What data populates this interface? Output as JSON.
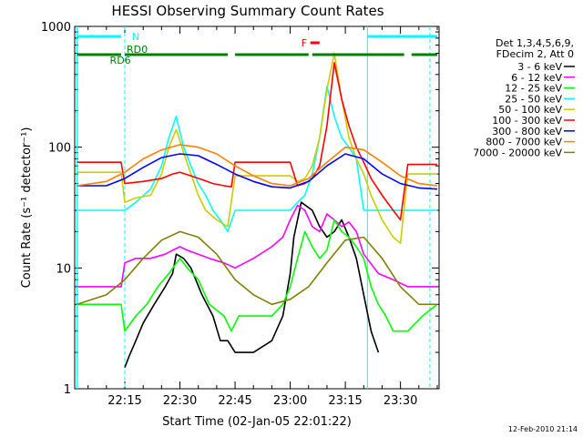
{
  "chart_data": {
    "type": "line",
    "title": "HESSI Observing Summary Count Rates",
    "xlabel": "Start Time (02-Jan-05 22:01:22)",
    "ylabel": "Count Rate (s⁻¹ detector⁻¹)",
    "y_scale": "log",
    "ylim": [
      1,
      1000
    ],
    "xlim": [
      "22:01:22",
      "23:40:30"
    ],
    "x_ticks": [
      "22:15",
      "22:30",
      "22:45",
      "23:00",
      "23:15",
      "23:30"
    ],
    "y_ticks": [
      "1",
      "10",
      "100",
      "1000"
    ],
    "timestamp": "12-Feb-2010 21:14",
    "legend": {
      "header": [
        "Det 1,3,4,5,6,9,",
        "FDecim 2, Att 0"
      ],
      "placement": "right"
    },
    "series": [
      {
        "name": "3 - 6 keV",
        "color": "#000000",
        "x": [
          "22:02",
          "22:14",
          "22:15",
          "22:16",
          "22:18",
          "22:20",
          "22:23",
          "22:26",
          "22:28",
          "22:29",
          "22:31",
          "22:33",
          "22:36",
          "22:39",
          "22:41",
          "22:43",
          "22:45",
          "22:50",
          "22:55",
          "22:58",
          "23:00",
          "23:01",
          "23:03",
          "23:06",
          "23:08",
          "23:10",
          "23:12",
          "23:14",
          "23:16",
          "23:18",
          "23:20",
          "23:22",
          "23:24",
          "23:26",
          "23:28",
          "23:30",
          "23:32",
          "23:34",
          "23:36",
          "23:40"
        ],
        "values": [
          null,
          null,
          1.5,
          1.8,
          2.5,
          3.5,
          5,
          7,
          9,
          13,
          12,
          10,
          6,
          4,
          2.5,
          2.5,
          2,
          2,
          2.5,
          4,
          9,
          18,
          35,
          30,
          22,
          18,
          20,
          25,
          18,
          12,
          6,
          3,
          2,
          null,
          null,
          null,
          null,
          null,
          null,
          null
        ]
      },
      {
        "name": "6 - 12 keV",
        "color": "#ff00ff",
        "x": [
          "22:02",
          "22:10",
          "22:14",
          "22:15",
          "22:18",
          "22:22",
          "22:26",
          "22:28",
          "22:30",
          "22:32",
          "22:35",
          "22:38",
          "22:42",
          "22:45",
          "22:50",
          "22:55",
          "22:58",
          "23:00",
          "23:02",
          "23:04",
          "23:06",
          "23:08",
          "23:10",
          "23:12",
          "23:14",
          "23:16",
          "23:18",
          "23:20",
          "23:24",
          "23:28",
          "23:32",
          "23:36",
          "23:40"
        ],
        "values": [
          7,
          7,
          7,
          11,
          12,
          12,
          13,
          14,
          15,
          14,
          13,
          12,
          11,
          10,
          12,
          15,
          18,
          25,
          33,
          30,
          22,
          20,
          28,
          25,
          22,
          24,
          20,
          13,
          9,
          8,
          7,
          7,
          7
        ]
      },
      {
        "name": "12 - 25 keV",
        "color": "#00ff00",
        "x": [
          "22:02",
          "22:10",
          "22:14",
          "22:15",
          "22:18",
          "22:21",
          "22:24",
          "22:27",
          "22:30",
          "22:32",
          "22:35",
          "22:38",
          "22:42",
          "22:44",
          "22:46",
          "22:50",
          "22:55",
          "22:58",
          "23:00",
          "23:02",
          "23:04",
          "23:06",
          "23:08",
          "23:10",
          "23:12",
          "23:14",
          "23:16",
          "23:18",
          "23:20",
          "23:22",
          "23:24",
          "23:26",
          "23:28",
          "23:32",
          "23:36",
          "23:40"
        ],
        "values": [
          5,
          5,
          5,
          3,
          4,
          5,
          7,
          9,
          12,
          10,
          8,
          5,
          4,
          3,
          4,
          4,
          4,
          5,
          7,
          12,
          20,
          15,
          12,
          14,
          25,
          20,
          18,
          15,
          12,
          7,
          5,
          4,
          3,
          3,
          4,
          5
        ]
      },
      {
        "name": "25 - 50 keV",
        "color": "#00ffff",
        "x": [
          "22:02",
          "22:10",
          "22:14",
          "22:15",
          "22:18",
          "22:22",
          "22:25",
          "22:27",
          "22:29",
          "22:31",
          "22:33",
          "22:35",
          "22:37",
          "22:39",
          "22:41",
          "22:43",
          "22:45",
          "22:50",
          "22:55",
          "23:00",
          "23:02",
          "23:04",
          "23:06",
          "23:08",
          "23:10",
          "23:12",
          "23:14",
          "23:16",
          "23:18",
          "23:20",
          "23:24",
          "23:28",
          "23:32",
          "23:36",
          "23:40"
        ],
        "values": [
          30,
          30,
          30,
          30,
          35,
          45,
          70,
          120,
          180,
          100,
          70,
          50,
          40,
          30,
          25,
          20,
          30,
          30,
          30,
          30,
          35,
          40,
          60,
          120,
          320,
          180,
          120,
          100,
          80,
          30,
          30,
          30,
          30,
          30,
          30
        ]
      },
      {
        "name": "50 - 100 keV",
        "color": "#cccc00",
        "x": [
          "22:02",
          "22:10",
          "22:14",
          "22:15",
          "22:18",
          "22:22",
          "22:25",
          "22:27",
          "22:29",
          "22:31",
          "22:33",
          "22:35",
          "22:37",
          "22:40",
          "22:43",
          "22:45",
          "22:50",
          "22:55",
          "23:00",
          "23:02",
          "23:04",
          "23:06",
          "23:08",
          "23:10",
          "23:12",
          "23:14",
          "23:16",
          "23:18",
          "23:20",
          "23:22",
          "23:25",
          "23:28",
          "23:30",
          "23:32",
          "23:34",
          "23:40"
        ],
        "values": [
          62,
          62,
          62,
          35,
          38,
          40,
          60,
          100,
          140,
          90,
          60,
          40,
          30,
          25,
          22,
          58,
          58,
          58,
          58,
          52,
          55,
          70,
          120,
          300,
          600,
          250,
          120,
          80,
          60,
          40,
          25,
          18,
          16,
          60,
          60,
          60
        ]
      },
      {
        "name": "100 - 300 keV",
        "color": "#ff0000",
        "x": [
          "22:02",
          "22:10",
          "22:14",
          "22:15",
          "22:20",
          "22:25",
          "22:28",
          "22:30",
          "22:33",
          "22:36",
          "22:39",
          "22:42",
          "22:44",
          "22:45",
          "22:50",
          "22:55",
          "23:00",
          "23:02",
          "23:04",
          "23:06",
          "23:08",
          "23:10",
          "23:12",
          "23:14",
          "23:16",
          "23:18",
          "23:20",
          "23:22",
          "23:25",
          "23:28",
          "23:30",
          "23:32",
          "23:34",
          "23:40"
        ],
        "values": [
          75,
          75,
          75,
          50,
          52,
          55,
          60,
          62,
          58,
          54,
          50,
          48,
          47,
          75,
          75,
          75,
          75,
          48,
          50,
          55,
          70,
          150,
          500,
          250,
          150,
          100,
          75,
          55,
          40,
          30,
          25,
          72,
          72,
          72
        ]
      },
      {
        "name": "300 - 800 keV",
        "color": "#0000ff",
        "x": [
          "22:02",
          "22:10",
          "22:15",
          "22:20",
          "22:25",
          "22:30",
          "22:35",
          "22:40",
          "22:45",
          "22:50",
          "22:55",
          "23:00",
          "23:05",
          "23:10",
          "23:15",
          "23:20",
          "23:25",
          "23:30",
          "23:35",
          "23:40"
        ],
        "values": [
          48,
          48,
          55,
          68,
          82,
          88,
          85,
          72,
          60,
          52,
          47,
          46,
          52,
          70,
          88,
          80,
          60,
          50,
          46,
          45
        ]
      },
      {
        "name": "800 - 7000 keV",
        "color": "#ff8000",
        "x": [
          "22:02",
          "22:10",
          "22:15",
          "22:20",
          "22:25",
          "22:30",
          "22:35",
          "22:40",
          "22:45",
          "22:50",
          "22:55",
          "23:00",
          "23:05",
          "23:10",
          "23:15",
          "23:20",
          "23:25",
          "23:30",
          "23:35",
          "23:40"
        ],
        "values": [
          48,
          52,
          62,
          80,
          95,
          105,
          100,
          88,
          70,
          58,
          50,
          48,
          55,
          75,
          100,
          95,
          75,
          58,
          50,
          48
        ]
      },
      {
        "name": "7000 - 20000 keV",
        "color": "#808000",
        "x": [
          "22:02",
          "22:10",
          "22:15",
          "22:20",
          "22:25",
          "22:30",
          "22:35",
          "22:40",
          "22:45",
          "22:50",
          "22:55",
          "23:00",
          "23:05",
          "23:10",
          "23:15",
          "23:20",
          "23:25",
          "23:30",
          "23:35",
          "23:40"
        ],
        "values": [
          5,
          6,
          8,
          12,
          17,
          20,
          18,
          13,
          8,
          6,
          5,
          5.5,
          7,
          11,
          17,
          18,
          12,
          7,
          5,
          5
        ]
      }
    ],
    "attenuator_bars": [
      {
        "label": "N",
        "color": "#00ffff",
        "start": "22:02",
        "end": "22:14"
      },
      {
        "label": "",
        "color": "#00ffff",
        "start": "23:21",
        "end": "23:40"
      }
    ],
    "saa_bars": [
      {
        "label": "RD6",
        "color": "#008000",
        "start": "22:02",
        "end": "22:14"
      },
      {
        "label": "RD0",
        "color": "#008000",
        "start": "22:15",
        "end": "22:43"
      },
      {
        "label": "",
        "color": "#008000",
        "start": "22:45",
        "end": "23:05"
      },
      {
        "label": "",
        "color": "#008000",
        "start": "23:06",
        "end": "23:31"
      },
      {
        "label": "",
        "color": "#008000",
        "start": "23:33",
        "end": "23:40"
      }
    ],
    "flare_flag": {
      "label": "F",
      "color": "#ff0000",
      "start": "23:04",
      "end": "23:07"
    },
    "vlines": [
      {
        "time": "22:02",
        "color": "#00ffff",
        "style": "solid"
      },
      {
        "time": "22:15",
        "color": "#00ffff",
        "style": "dashed"
      },
      {
        "time": "23:21",
        "color": "#00ffff",
        "style": "solid"
      },
      {
        "time": "23:38",
        "color": "#00ffff",
        "style": "dashed"
      }
    ]
  }
}
